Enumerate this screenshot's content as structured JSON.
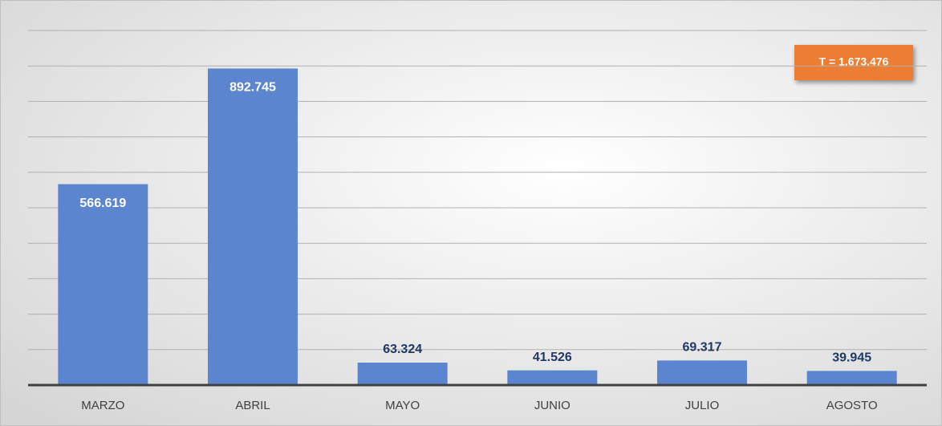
{
  "chart_data": {
    "type": "bar",
    "categories": [
      "MARZO",
      "ABRIL",
      "MAYO",
      "JUNIO",
      "JULIO",
      "AGOSTO"
    ],
    "values": [
      566619,
      892745,
      63324,
      41526,
      69317,
      39945
    ],
    "value_labels": [
      "566.619",
      "892.745",
      "63.324",
      "41.526",
      "69.317",
      "39.945"
    ],
    "color": "#5b86cf",
    "ylim": [
      0,
      1000000
    ],
    "yticks": [
      0,
      100000,
      200000,
      300000,
      400000,
      500000,
      600000,
      700000,
      800000,
      900000,
      1000000
    ],
    "grid": true,
    "annotation": "T = 1.673.476"
  }
}
